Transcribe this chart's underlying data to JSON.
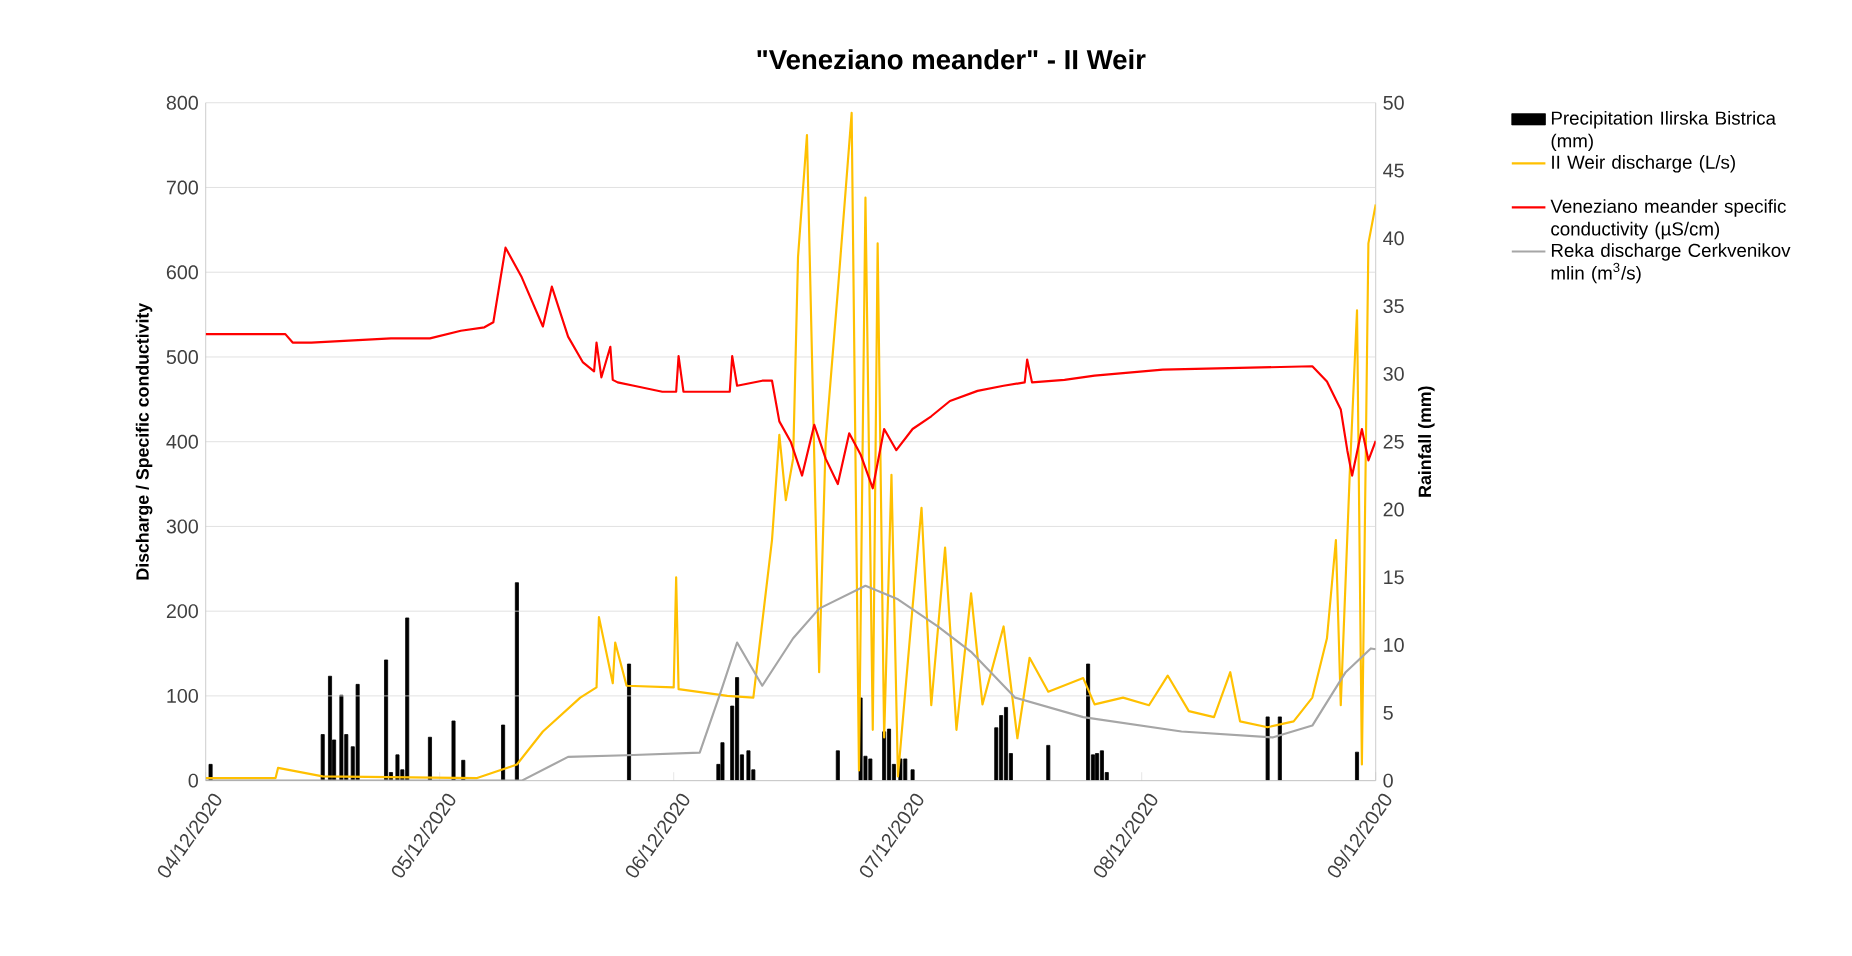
{
  "chart_data": {
    "type": "line",
    "title": "\"Veneziano meander\" - II Weir",
    "ylabel": "Discharge / Specific conductivity",
    "y2label": "Rainfall (mm)",
    "xlim": [
      "2020-12-04",
      "2020-12-09"
    ],
    "xticks": [
      {
        "value": "2020-12-04",
        "label": "04/12/2020"
      },
      {
        "value": "2020-12-05",
        "label": "05/12/2020"
      },
      {
        "value": "2020-12-06",
        "label": "06/12/2020"
      },
      {
        "value": "2020-12-07",
        "label": "07/12/2020"
      },
      {
        "value": "2020-12-08",
        "label": "08/12/2020"
      },
      {
        "value": "2020-12-09",
        "label": "09/12/2020"
      }
    ],
    "ylim": [
      0,
      800
    ],
    "yticks": [
      0,
      100,
      200,
      300,
      400,
      500,
      600,
      700,
      800
    ],
    "y2lim": [
      0,
      50
    ],
    "y2ticks": [
      0,
      5,
      10,
      15,
      20,
      25,
      30,
      35,
      40,
      45,
      50
    ],
    "grid": "y",
    "legend": "right",
    "series": [
      {
        "name": "Precipitation Ilirska Bistrica (mm)",
        "type": "bar",
        "axis": "y2",
        "color": "#000000",
        "x": [
          "2020-12-04T00:30",
          "2020-12-04T12:00",
          "2020-12-04T12:45",
          "2020-12-04T13:10",
          "2020-12-04T13:55",
          "2020-12-04T14:25",
          "2020-12-04T15:05",
          "2020-12-04T15:35",
          "2020-12-04T18:30",
          "2020-12-04T19:00",
          "2020-12-04T19:40",
          "2020-12-04T20:10",
          "2020-12-04T20:40",
          "2020-12-04T23:00",
          "2020-12-05T01:25",
          "2020-12-05T02:25",
          "2020-12-05T06:30",
          "2020-12-05T07:55",
          "2020-12-05T19:25",
          "2020-12-06T04:35",
          "2020-12-06T05:00",
          "2020-12-06T06:00",
          "2020-12-06T06:30",
          "2020-12-06T07:00",
          "2020-12-06T07:40",
          "2020-12-06T08:10",
          "2020-12-06T16:50",
          "2020-12-06T19:10",
          "2020-12-06T19:40",
          "2020-12-06T20:10",
          "2020-12-06T21:35",
          "2020-12-06T22:05",
          "2020-12-06T22:35",
          "2020-12-06T23:15",
          "2020-12-06T23:45",
          "2020-12-07T00:30",
          "2020-12-07T09:05",
          "2020-12-07T09:35",
          "2020-12-07T10:05",
          "2020-12-07T10:35",
          "2020-12-07T14:25",
          "2020-12-07T18:30",
          "2020-12-07T19:00",
          "2020-12-07T19:25",
          "2020-12-07T19:55",
          "2020-12-07T20:25",
          "2020-12-08T12:55",
          "2020-12-08T14:10",
          "2020-12-08T22:05"
        ],
        "values": [
          1.2,
          3.4,
          7.7,
          3.0,
          6.3,
          3.4,
          2.5,
          7.1,
          8.9,
          0.6,
          1.9,
          0.8,
          12.0,
          3.2,
          4.4,
          1.5,
          4.1,
          14.6,
          8.6,
          1.2,
          2.8,
          5.5,
          7.6,
          1.9,
          2.2,
          0.8,
          2.2,
          6.1,
          1.8,
          1.6,
          3.6,
          3.8,
          1.2,
          1.6,
          1.6,
          0.8,
          3.9,
          4.8,
          5.4,
          2.0,
          2.6,
          8.6,
          1.9,
          2.0,
          2.2,
          0.6,
          4.7,
          4.7,
          2.1
        ]
      },
      {
        "name": "II Weir discharge (L/s)",
        "color": "#ffc000",
        "x": [
          "2020-12-04T00:00",
          "2020-12-04T07:10",
          "2020-12-04T07:25",
          "2020-12-04T12:00",
          "2020-12-05T03:50",
          "2020-12-05T07:55",
          "2020-12-05T10:35",
          "2020-12-05T14:25",
          "2020-12-05T16:05",
          "2020-12-05T16:20",
          "2020-12-05T17:45",
          "2020-12-05T18:00",
          "2020-12-05T19:10",
          "2020-12-06T00:00",
          "2020-12-06T00:15",
          "2020-12-06T00:30",
          "2020-12-06T05:30",
          "2020-12-06T08:10",
          "2020-12-06T10:05",
          "2020-12-06T10:50",
          "2020-12-06T11:30",
          "2020-12-06T12:15",
          "2020-12-06T12:45",
          "2020-12-06T13:40",
          "2020-12-06T14:55",
          "2020-12-06T15:35",
          "2020-12-06T16:50",
          "2020-12-06T18:15",
          "2020-12-06T19:00",
          "2020-12-06T19:40",
          "2020-12-06T20:25",
          "2020-12-06T20:55",
          "2020-12-06T21:35",
          "2020-12-06T22:20",
          "2020-12-06T23:00",
          "2020-12-07T00:30",
          "2020-12-07T01:25",
          "2020-12-07T02:25",
          "2020-12-07T03:50",
          "2020-12-07T05:00",
          "2020-12-07T06:30",
          "2020-12-07T07:40",
          "2020-12-07T09:50",
          "2020-12-07T11:15",
          "2020-12-07T12:30",
          "2020-12-07T14:25",
          "2020-12-07T18:00",
          "2020-12-07T19:10",
          "2020-12-07T22:05",
          "2020-12-08T00:45",
          "2020-12-08T02:40",
          "2020-12-08T04:50",
          "2020-12-08T07:25",
          "2020-12-08T09:05",
          "2020-12-08T10:05",
          "2020-12-08T12:55",
          "2020-12-08T15:35",
          "2020-12-08T17:30",
          "2020-12-08T19:00",
          "2020-12-08T19:55",
          "2020-12-08T20:25",
          "2020-12-08T21:20",
          "2020-12-08T22:05",
          "2020-12-08T22:35",
          "2020-12-08T23:15",
          "2020-12-09T00:00"
        ],
        "values": [
          3,
          3,
          15,
          5,
          3,
          19,
          58,
          98,
          110,
          193,
          115,
          163,
          112,
          110,
          240,
          108,
          100,
          98,
          284,
          408,
          331,
          380,
          618,
          762,
          128,
          400,
          578,
          788,
          12,
          688,
          60,
          634,
          51,
          361,
          5,
          205,
          322,
          89,
          275,
          60,
          221,
          90,
          182,
          50,
          145,
          105,
          121,
          90,
          98,
          89,
          124,
          82,
          75,
          128,
          70,
          63,
          70,
          98,
          168,
          284,
          89,
          361,
          555,
          19,
          634,
          680
        ]
      },
      {
        "name": "Veneziano meander specific conductivity (µS/cm)",
        "color": "#ff0000",
        "x": [
          "2020-12-04T00:00",
          "2020-12-04T08:10",
          "2020-12-04T08:55",
          "2020-12-04T10:50",
          "2020-12-04T19:00",
          "2020-12-04T23:00",
          "2020-12-05T02:10",
          "2020-12-05T04:35",
          "2020-12-05T05:30",
          "2020-12-05T06:45",
          "2020-12-05T08:25",
          "2020-12-05T10:35",
          "2020-12-05T11:30",
          "2020-12-05T13:10",
          "2020-12-05T14:40",
          "2020-12-05T15:50",
          "2020-12-05T16:05",
          "2020-12-05T16:35",
          "2020-12-05T17:30",
          "2020-12-05T17:45",
          "2020-12-05T18:15",
          "2020-12-05T19:55",
          "2020-12-05T22:50",
          "2020-12-06T00:15",
          "2020-12-06T00:30",
          "2020-12-06T01:00",
          "2020-12-06T05:45",
          "2020-12-06T06:00",
          "2020-12-06T06:30",
          "2020-12-06T09:05",
          "2020-12-06T10:05",
          "2020-12-06T10:50",
          "2020-12-06T12:00",
          "2020-12-06T13:10",
          "2020-12-06T14:25",
          "2020-12-06T15:35",
          "2020-12-06T16:50",
          "2020-12-06T18:00",
          "2020-12-06T19:10",
          "2020-12-06T20:25",
          "2020-12-06T21:35",
          "2020-12-06T22:50",
          "2020-12-07T00:30",
          "2020-12-07T02:25",
          "2020-12-07T04:20",
          "2020-12-07T07:10",
          "2020-12-07T09:50",
          "2020-12-07T12:00",
          "2020-12-07T12:15",
          "2020-12-07T12:45",
          "2020-12-07T16:05",
          "2020-12-07T19:10",
          "2020-12-08T02:10",
          "2020-12-08T17:30",
          "2020-12-08T19:00",
          "2020-12-08T20:25",
          "2020-12-08T21:05",
          "2020-12-08T21:35",
          "2020-12-08T22:35",
          "2020-12-08T23:15",
          "2020-12-09T00:00"
        ],
        "values": [
          527,
          527,
          517,
          517,
          522,
          522,
          531,
          535,
          541,
          629,
          594,
          536,
          583,
          524,
          494,
          483,
          517,
          476,
          512,
          473,
          470,
          466,
          459,
          459,
          501,
          459,
          459,
          501,
          466,
          472,
          472,
          424,
          400,
          360,
          420,
          380,
          350,
          410,
          385,
          345,
          415,
          390,
          415,
          430,
          448,
          460,
          466,
          470,
          497,
          470,
          473,
          478,
          485,
          489,
          471,
          438,
          390,
          360,
          415,
          378,
          401
        ]
      },
      {
        "name": "Reka discharge Cerkvenikov mlin (m$^{3}$/s)",
        "color": "#a6a6a6",
        "x": [
          "2020-12-04T00:00",
          "2020-12-05T08:25",
          "2020-12-05T13:10",
          "2020-12-05T19:10",
          "2020-12-06T02:40",
          "2020-12-06T04:50",
          "2020-12-06T06:30",
          "2020-12-06T09:05",
          "2020-12-06T12:15",
          "2020-12-06T14:55",
          "2020-12-06T19:40",
          "2020-12-06T23:00",
          "2020-12-07T03:05",
          "2020-12-07T06:30",
          "2020-12-07T11:00",
          "2020-12-07T18:00",
          "2020-12-08T04:05",
          "2020-12-08T13:25",
          "2020-12-08T17:30",
          "2020-12-08T20:55",
          "2020-12-08T23:30",
          "2020-12-09T00:00"
        ],
        "values": [
          0,
          0,
          28,
          30,
          33,
          105,
          163,
          112,
          168,
          203,
          230,
          214,
          182,
          152,
          98,
          75,
          58,
          51,
          65,
          128,
          156,
          155
        ]
      }
    ]
  }
}
